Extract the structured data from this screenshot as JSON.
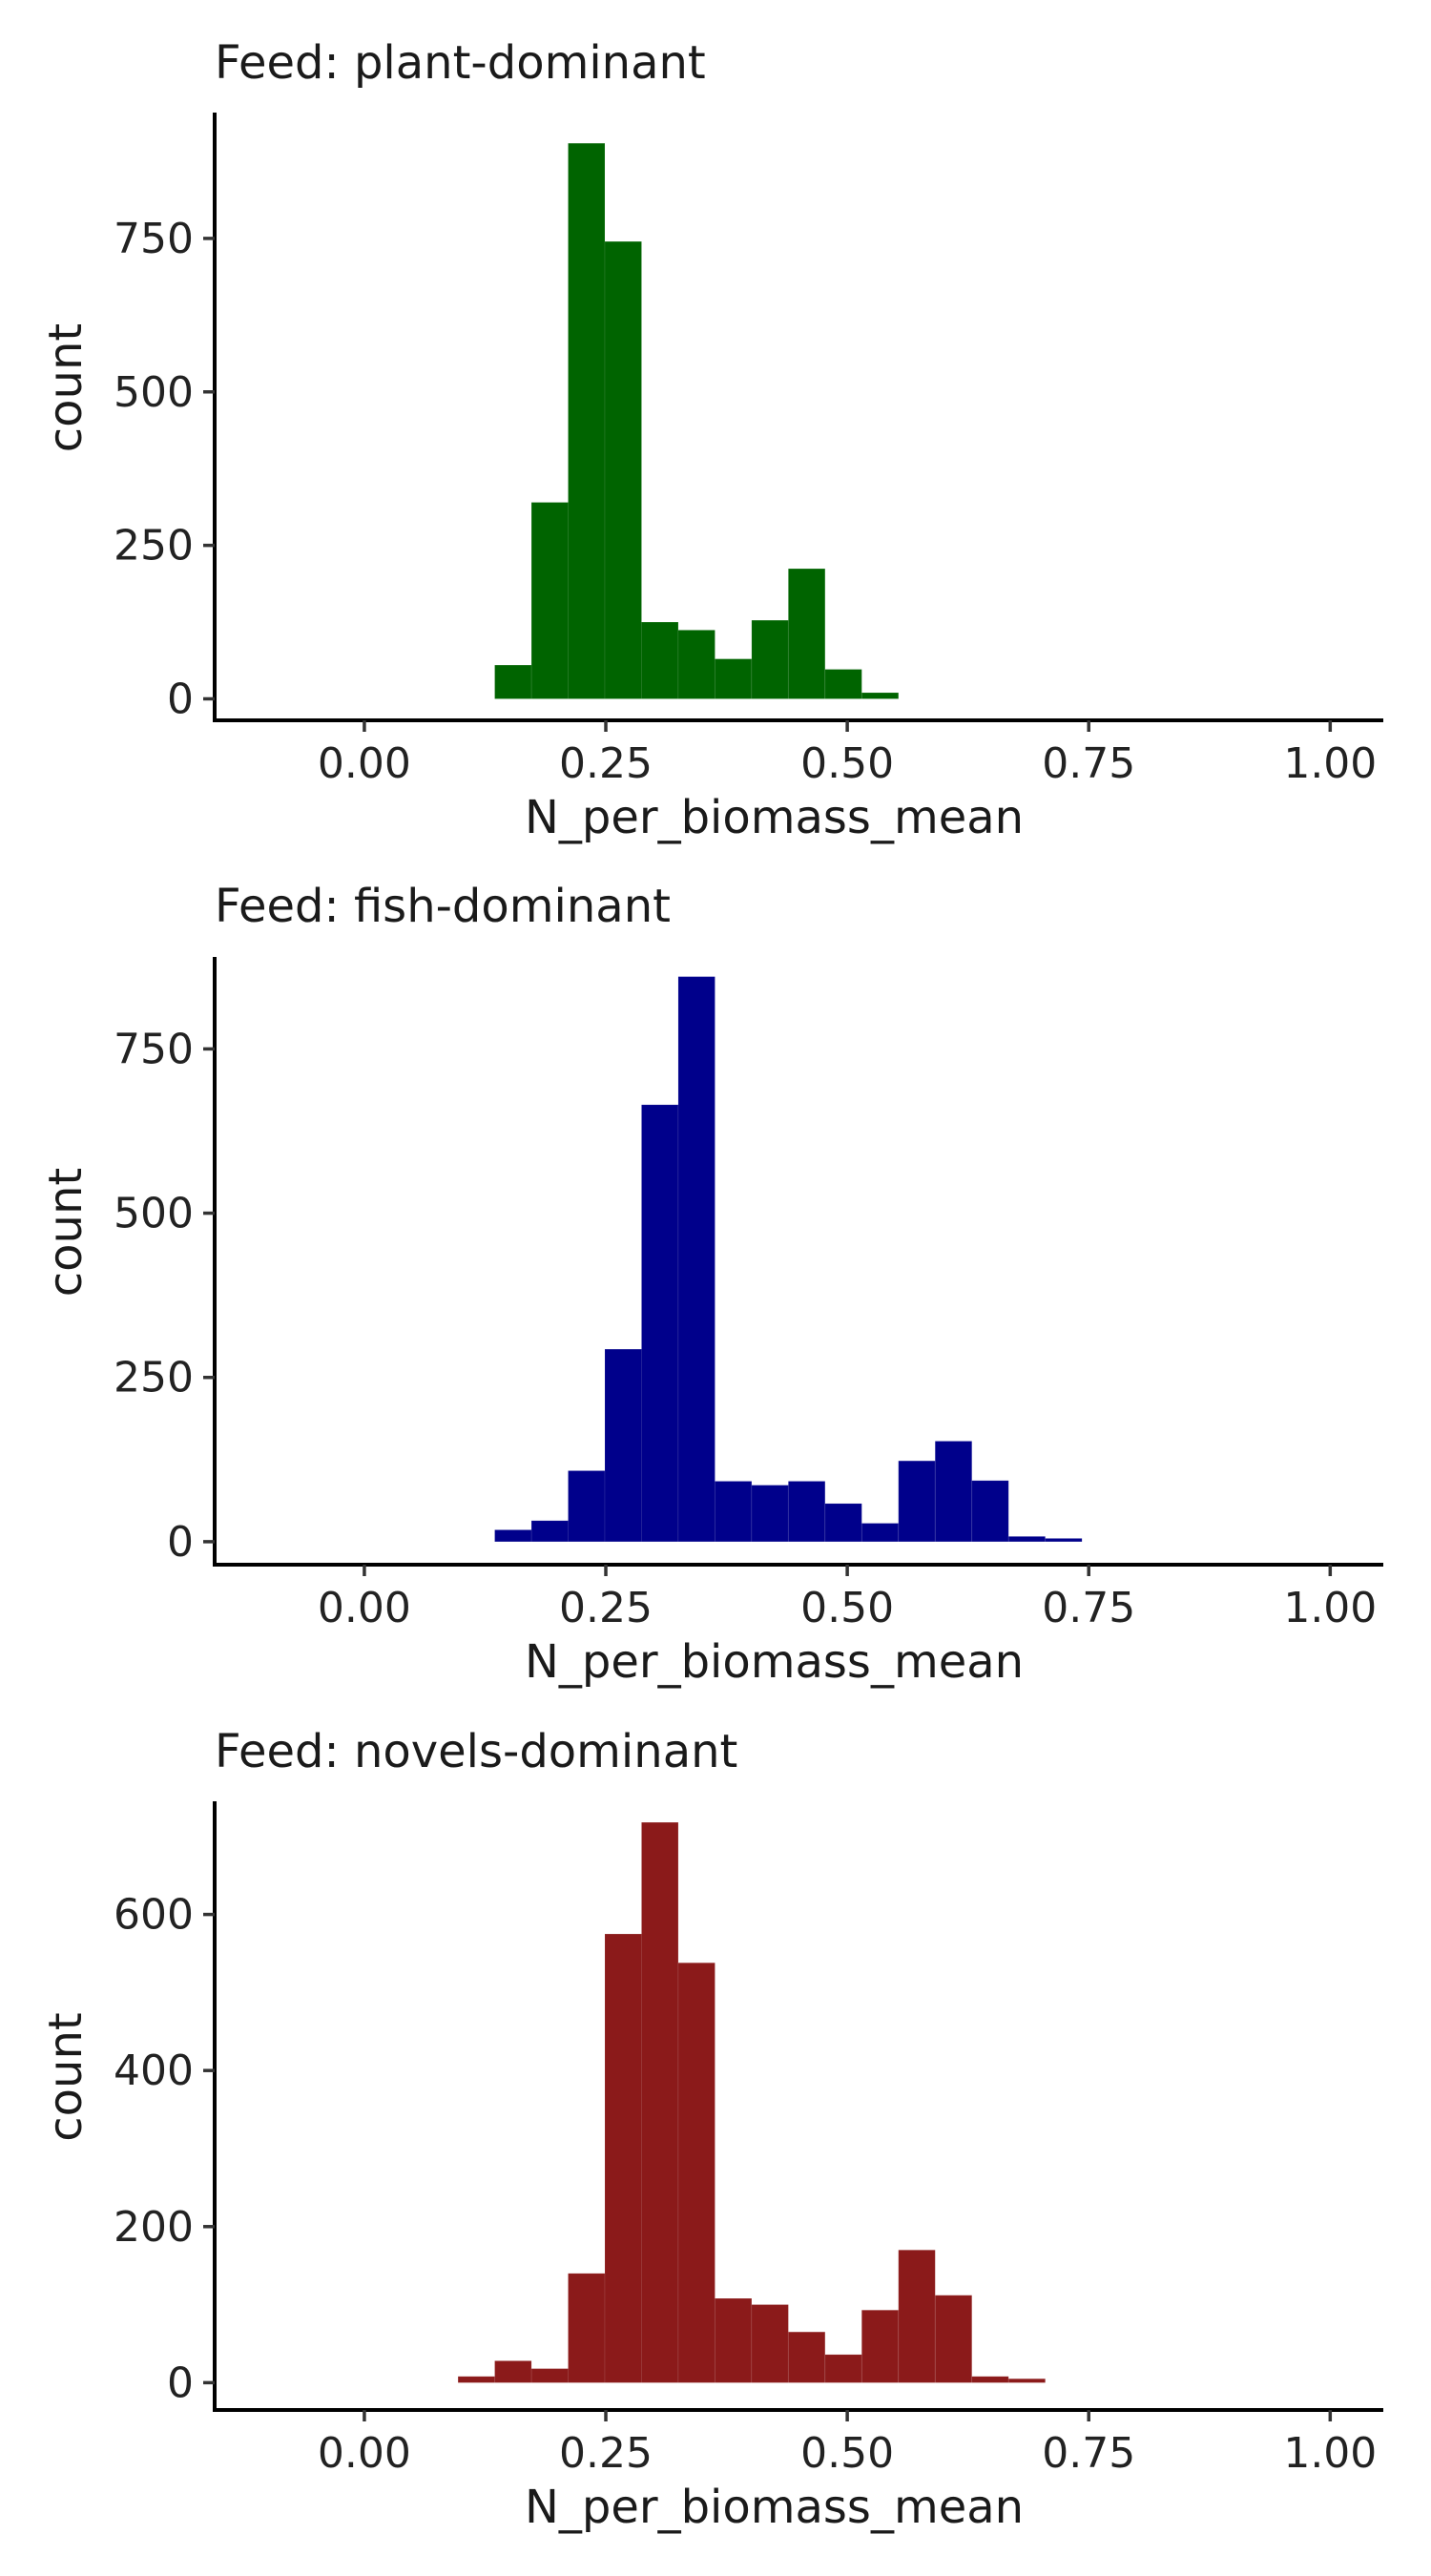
{
  "chart_data": [
    {
      "type": "bar",
      "title": "Feed: plant-dominant",
      "xlabel": "N_per_biomass_mean",
      "ylabel": "count",
      "color": "#006400",
      "xlim": [
        -0.155,
        1.055
      ],
      "ylim": [
        -35,
        955
      ],
      "xticks": [
        0.0,
        0.25,
        0.5,
        0.75,
        1.0
      ],
      "xtick_labels": [
        "0.00",
        "0.25",
        "0.50",
        "0.75",
        "1.00"
      ],
      "yticks": [
        0,
        250,
        500,
        750
      ],
      "ytick_labels": [
        "0",
        "250",
        "500",
        "750"
      ],
      "bin_width": 0.038,
      "bins": [
        {
          "x": 0.154,
          "count": 55
        },
        {
          "x": 0.192,
          "count": 320
        },
        {
          "x": 0.23,
          "count": 905
        },
        {
          "x": 0.268,
          "count": 745
        },
        {
          "x": 0.306,
          "count": 125
        },
        {
          "x": 0.344,
          "count": 112
        },
        {
          "x": 0.382,
          "count": 65
        },
        {
          "x": 0.42,
          "count": 128
        },
        {
          "x": 0.458,
          "count": 212
        },
        {
          "x": 0.496,
          "count": 48
        },
        {
          "x": 0.534,
          "count": 10
        }
      ]
    },
    {
      "type": "bar",
      "title": "Feed: fish-dominant",
      "xlabel": "N_per_biomass_mean",
      "ylabel": "count",
      "color": "#00008B",
      "xlim": [
        -0.155,
        1.055
      ],
      "ylim": [
        -35,
        890
      ],
      "xticks": [
        0.0,
        0.25,
        0.5,
        0.75,
        1.0
      ],
      "xtick_labels": [
        "0.00",
        "0.25",
        "0.50",
        "0.75",
        "1.00"
      ],
      "yticks": [
        0,
        250,
        500,
        750
      ],
      "ytick_labels": [
        "0",
        "250",
        "500",
        "750"
      ],
      "bin_width": 0.038,
      "bins": [
        {
          "x": 0.154,
          "count": 18
        },
        {
          "x": 0.192,
          "count": 32
        },
        {
          "x": 0.23,
          "count": 108
        },
        {
          "x": 0.268,
          "count": 293
        },
        {
          "x": 0.306,
          "count": 665
        },
        {
          "x": 0.344,
          "count": 860
        },
        {
          "x": 0.382,
          "count": 92
        },
        {
          "x": 0.42,
          "count": 86
        },
        {
          "x": 0.458,
          "count": 92
        },
        {
          "x": 0.496,
          "count": 58
        },
        {
          "x": 0.534,
          "count": 28
        },
        {
          "x": 0.572,
          "count": 123
        },
        {
          "x": 0.61,
          "count": 153
        },
        {
          "x": 0.648,
          "count": 93
        },
        {
          "x": 0.686,
          "count": 8
        },
        {
          "x": 0.724,
          "count": 5
        }
      ]
    },
    {
      "type": "bar",
      "title": "Feed: novels-dominant",
      "xlabel": "N_per_biomass_mean",
      "ylabel": "count",
      "color": "#8B1A1A",
      "xlim": [
        -0.155,
        1.055
      ],
      "ylim": [
        -35,
        745
      ],
      "xticks": [
        0.0,
        0.25,
        0.5,
        0.75,
        1.0
      ],
      "xtick_labels": [
        "0.00",
        "0.25",
        "0.50",
        "0.75",
        "1.00"
      ],
      "yticks": [
        0,
        200,
        400,
        600
      ],
      "ytick_labels": [
        "0",
        "200",
        "400",
        "600"
      ],
      "bin_width": 0.038,
      "bins": [
        {
          "x": 0.116,
          "count": 8
        },
        {
          "x": 0.154,
          "count": 28
        },
        {
          "x": 0.192,
          "count": 18
        },
        {
          "x": 0.23,
          "count": 140
        },
        {
          "x": 0.268,
          "count": 575
        },
        {
          "x": 0.306,
          "count": 718
        },
        {
          "x": 0.344,
          "count": 538
        },
        {
          "x": 0.382,
          "count": 108
        },
        {
          "x": 0.42,
          "count": 100
        },
        {
          "x": 0.458,
          "count": 65
        },
        {
          "x": 0.496,
          "count": 36
        },
        {
          "x": 0.534,
          "count": 93
        },
        {
          "x": 0.572,
          "count": 170
        },
        {
          "x": 0.61,
          "count": 112
        },
        {
          "x": 0.648,
          "count": 8
        },
        {
          "x": 0.686,
          "count": 5
        }
      ]
    }
  ]
}
